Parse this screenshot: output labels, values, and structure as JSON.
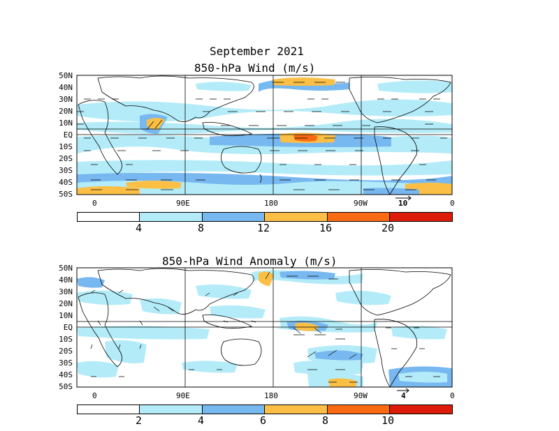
{
  "figure": {
    "title": "September 2021"
  },
  "lat_labels": [
    "50N",
    "40N",
    "30N",
    "20N",
    "10N",
    "EQ",
    "10S",
    "20S",
    "30S",
    "40S",
    "50S"
  ],
  "lon_labels": [
    "0",
    "90E",
    "180",
    "90W",
    "0"
  ],
  "colors": [
    "#ffffff",
    "#b3ecf8",
    "#78b8f0",
    "#fbbf46",
    "#fa6a12",
    "#dc1c08"
  ],
  "panels": [
    {
      "title": "850-hPa Wind (m/s)",
      "ref_vector": "10",
      "colorbar_ticks": [
        "4",
        "8",
        "12",
        "16",
        "20"
      ],
      "colorbar_values": [
        4,
        8,
        12,
        16,
        20
      ]
    },
    {
      "title": "850-hPa Wind Anomaly (m/s)",
      "ref_vector": "4",
      "colorbar_ticks": [
        "2",
        "4",
        "6",
        "8",
        "10"
      ],
      "colorbar_values": [
        2,
        4,
        6,
        8,
        10
      ]
    }
  ]
}
